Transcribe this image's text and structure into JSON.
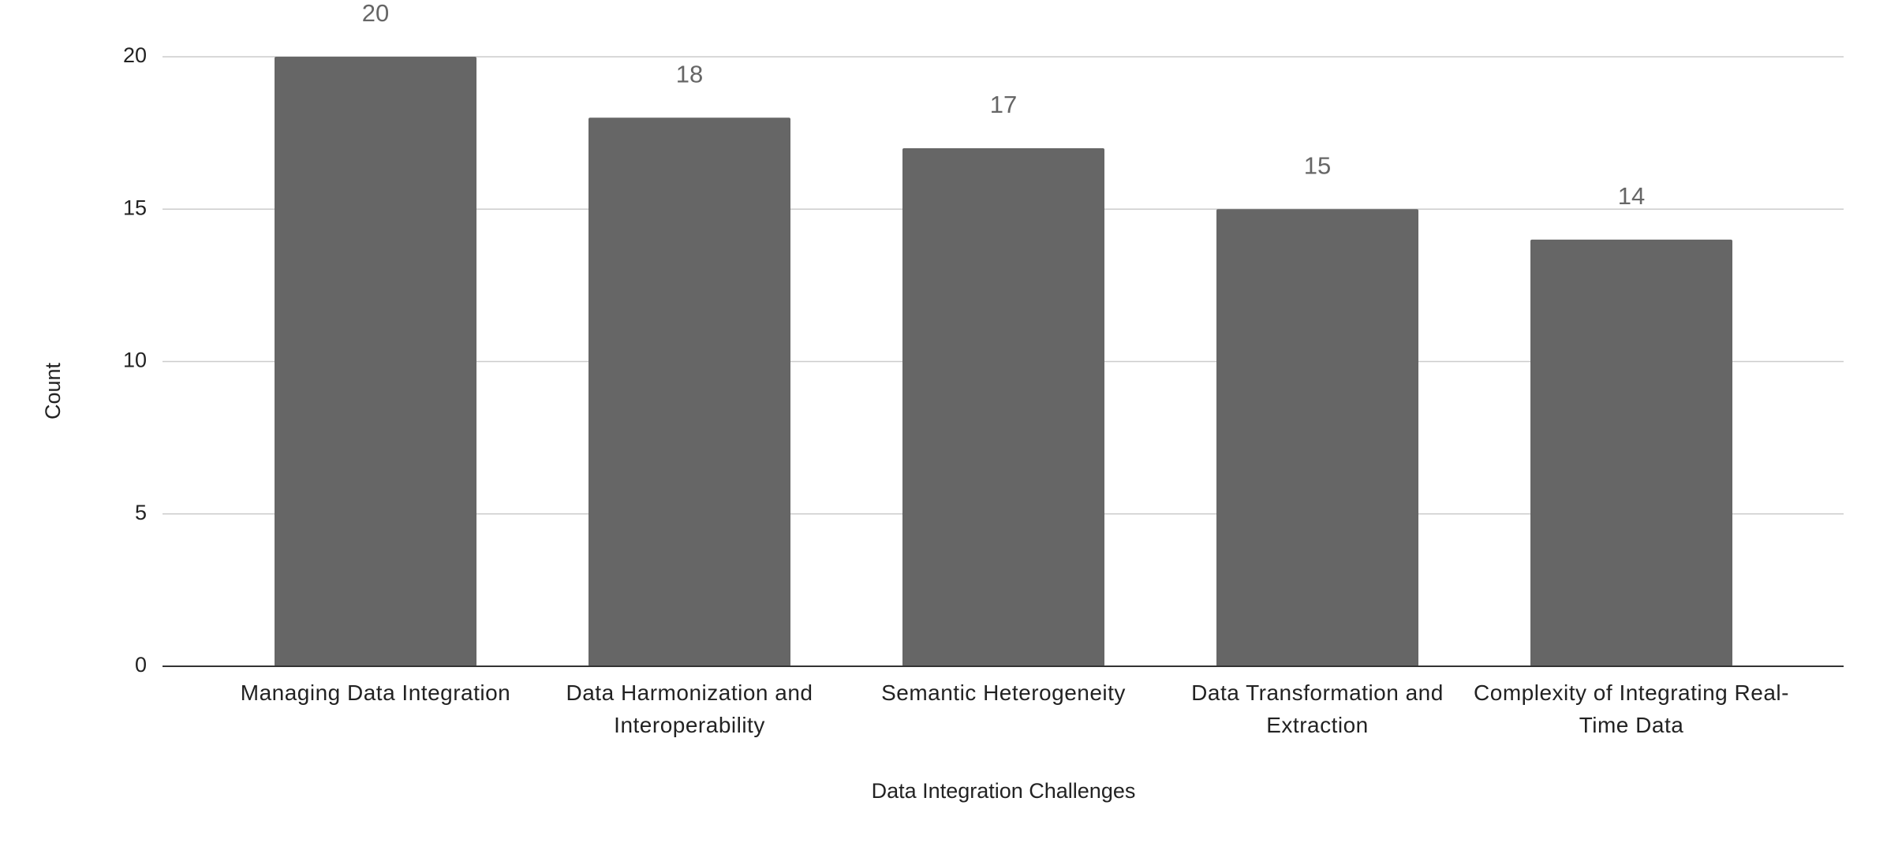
{
  "chart_data": {
    "type": "bar",
    "categories": [
      "Managing Data Integration",
      "Data Harmonization and Interoperability",
      "Semantic Heterogeneity",
      "Data Transformation and Extraction",
      "Complexity of Integrating Real-Time Data"
    ],
    "values": [
      20,
      18,
      17,
      15,
      14
    ],
    "color": "#666666",
    "x_label": "Data Integration Challenges",
    "y_label": "Count",
    "ylim": [
      0,
      20
    ],
    "yticks": [
      0,
      5,
      10,
      15,
      20
    ],
    "grid": true
  }
}
